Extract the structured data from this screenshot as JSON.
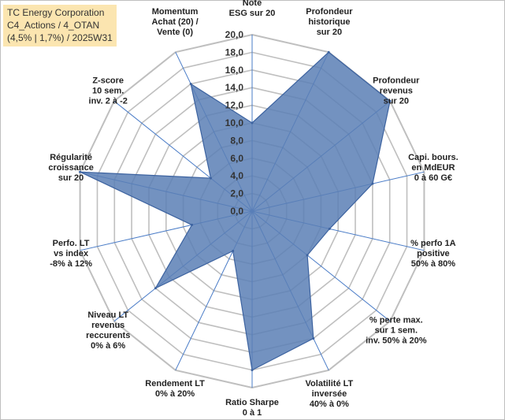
{
  "header": {
    "line1": "TC Energy Corporation",
    "line2": "C4_Actions / 4_OTAN",
    "line3": "(4,5% | 1,7%) / 2025W31"
  },
  "colors": {
    "grid": "#bfbfbf",
    "spoke": "#4a7cc7",
    "fill": "#5b7fb5",
    "stroke": "#3d63a0",
    "title_bg": "#fbe5b0"
  },
  "chart_data": {
    "type": "radar",
    "rmin": 0,
    "rmax": 20,
    "tick_step": 2,
    "tick_labels": [
      "0,0",
      "2,0",
      "4,0",
      "6,0",
      "8,0",
      "10,0",
      "12,0",
      "14,0",
      "16,0",
      "18,0",
      "20,0"
    ],
    "axes": [
      {
        "label": [
          "Note",
          "ESG sur 20"
        ],
        "value": 10
      },
      {
        "label": [
          "Profondeur",
          "historique",
          "sur 20"
        ],
        "value": 20
      },
      {
        "label": [
          "Profondeur",
          "revenus",
          "sur 20"
        ],
        "value": 20
      },
      {
        "label": [
          "Capi. bours.",
          "en MdEUR",
          "0 à 60 G€"
        ],
        "value": 14
      },
      {
        "label": [
          "% perfo 1A",
          "positive",
          "50% à 80%"
        ],
        "value": 9
      },
      {
        "label": [
          "% perte max.",
          "sur 1 sem.",
          "inv. 50% à 20%"
        ],
        "value": 8
      },
      {
        "label": [
          "Volatilité LT",
          "inversée",
          "40% à 0%"
        ],
        "value": 16
      },
      {
        "label": [
          "Ratio Sharpe",
          "0 à 1"
        ],
        "value": 18
      },
      {
        "label": [
          "Rendement LT",
          "0% à 20%"
        ],
        "value": 5
      },
      {
        "label": [
          "Niveau LT",
          "revenus",
          "reccurents",
          "0% à 6%"
        ],
        "value": 14
      },
      {
        "label": [
          "Perfo. LT",
          "vs index",
          "-8% à 12%"
        ],
        "value": 7
      },
      {
        "label": [
          "Régularité",
          "croissance",
          "sur 20"
        ],
        "value": 20
      },
      {
        "label": [
          "Z-score",
          "10 sem.",
          "inv. 2 à -2"
        ],
        "value": 6
      },
      {
        "label": [
          "Momentum",
          "Achat (20) /",
          "Vente (0)"
        ],
        "value": 16
      }
    ]
  }
}
